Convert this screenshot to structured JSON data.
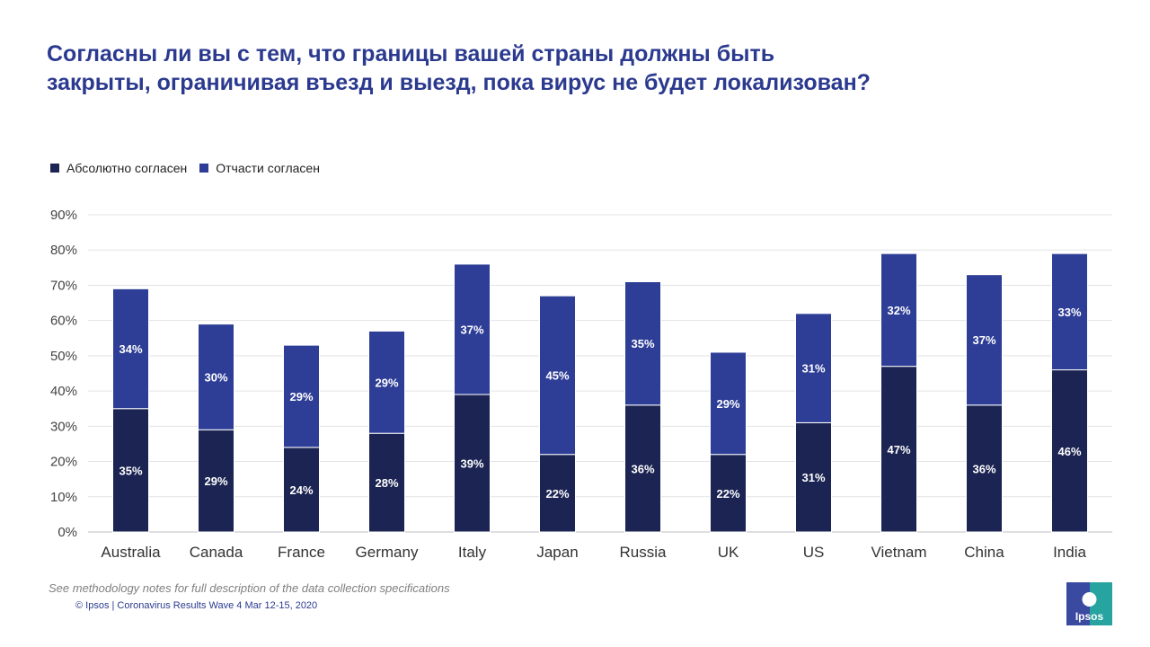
{
  "title": "Согласны ли вы с тем, что границы вашей страны должны быть закрыты, ограничивая въезд и выезд, пока вирус не будет локализован?",
  "legend": [
    {
      "label": "Абсолютно согласен",
      "color": "#1b2452"
    },
    {
      "label": "Отчасти согласен",
      "color": "#2e3e96"
    }
  ],
  "footer": {
    "note": "See methodology notes for full description of the data collection specifications",
    "copyright": "© Ipsos | Coronavirus Results Wave 4 Mar 12-15, 2020",
    "logo_text": "Ipsos"
  },
  "chart_data": {
    "type": "bar",
    "stacked": true,
    "categories": [
      "Australia",
      "Canada",
      "France",
      "Germany",
      "Italy",
      "Japan",
      "Russia",
      "UK",
      "US",
      "Vietnam",
      "China",
      "India"
    ],
    "series": [
      {
        "name": "Абсолютно согласен",
        "color": "#1b2452",
        "values": [
          35,
          29,
          24,
          28,
          39,
          22,
          36,
          22,
          31,
          47,
          36,
          46
        ]
      },
      {
        "name": "Отчасти согласен",
        "color": "#2e3e96",
        "values": [
          34,
          30,
          29,
          29,
          37,
          45,
          35,
          29,
          31,
          32,
          37,
          33
        ]
      }
    ],
    "ylim": [
      0,
      90
    ],
    "yticks": [
      0,
      10,
      20,
      30,
      40,
      50,
      60,
      70,
      80,
      90
    ],
    "ytick_format": "%",
    "data_labels": true,
    "grid": true,
    "legend_position": "top-left"
  }
}
